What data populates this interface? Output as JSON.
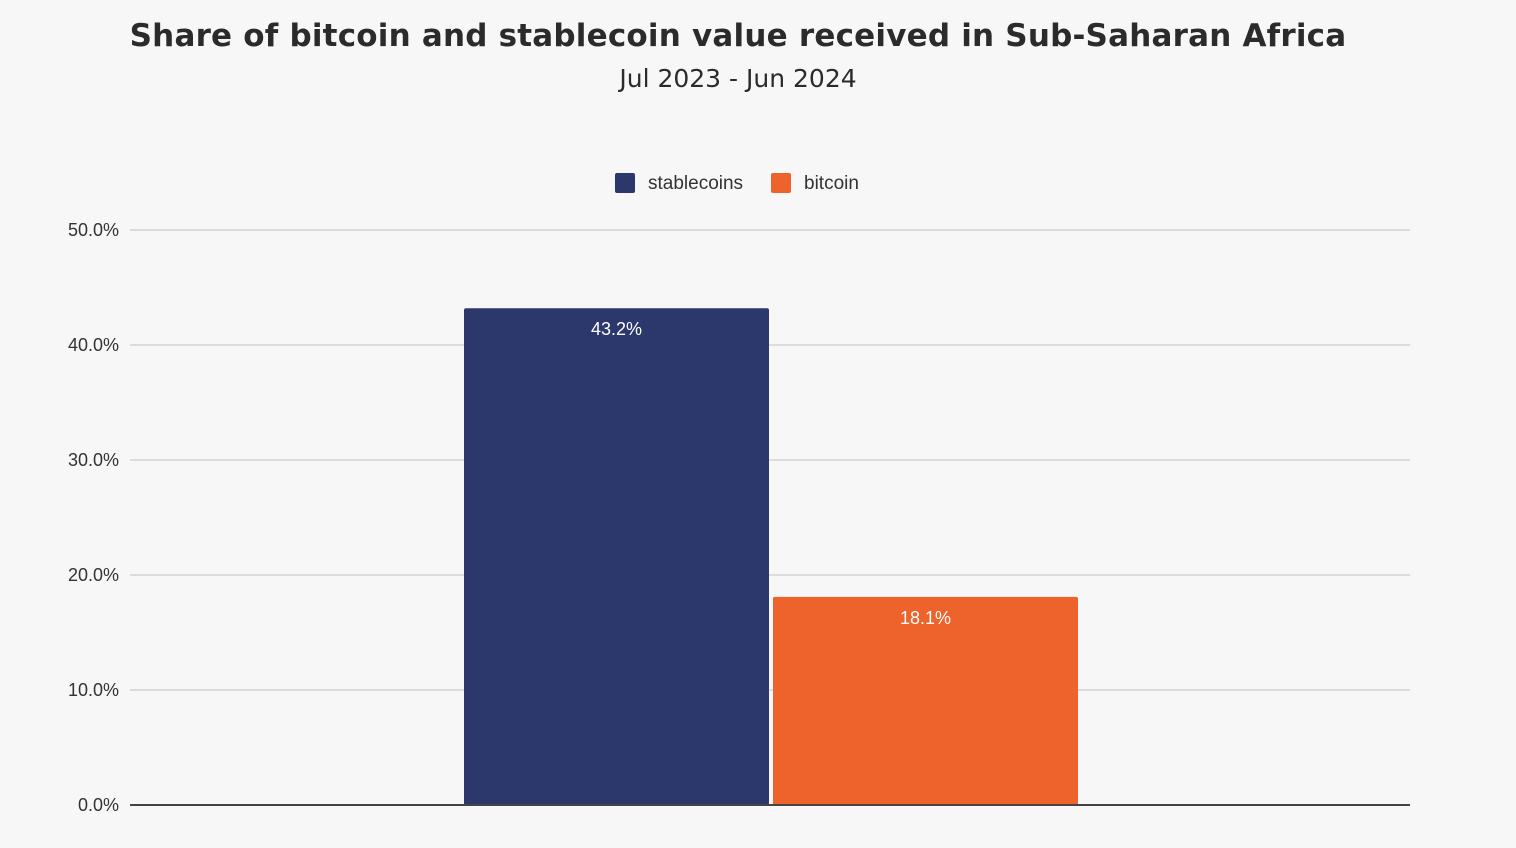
{
  "chart_data": {
    "type": "bar",
    "title": "Share of bitcoin and stablecoin value received in Sub-Saharan Africa",
    "subtitle": "Jul 2023 - Jun 2024",
    "xlabel": "",
    "ylabel": "",
    "ylim": [
      0,
      50
    ],
    "y_ticks": [
      "0.0%",
      "10.0%",
      "20.0%",
      "30.0%",
      "40.0%",
      "50.0%"
    ],
    "y_tick_values": [
      0,
      10,
      20,
      30,
      40,
      50
    ],
    "grid": true,
    "legend_position": "top-center",
    "series": [
      {
        "name": "stablecoins",
        "value": 43.2,
        "label": "43.2%",
        "color": "#2c386b"
      },
      {
        "name": "bitcoin",
        "value": 18.1,
        "label": "18.1%",
        "color": "#ee622b"
      }
    ]
  }
}
